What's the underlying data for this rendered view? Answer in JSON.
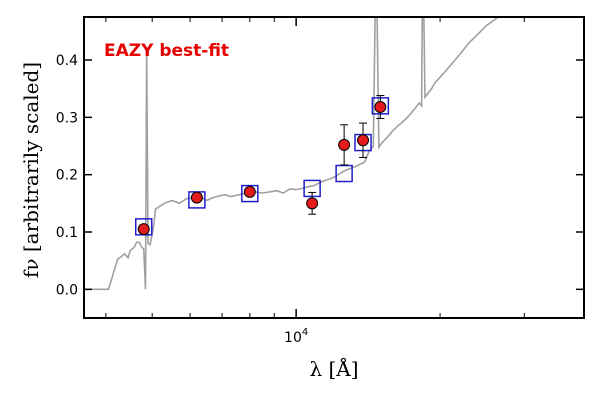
{
  "chart_data": {
    "type": "scatter",
    "title": "",
    "xlabel": "λ [Å]",
    "ylabel": "fν [arbitrarily scaled]",
    "xscale": "log",
    "xlim": [
      3600,
      40000
    ],
    "ylim": [
      -0.05,
      0.475
    ],
    "grid": false,
    "legend": "none",
    "x_tick_labels": [
      "10^4"
    ],
    "x_tick_values": [
      10000
    ],
    "y_tick_labels": [
      "0.0",
      "0.1",
      "0.2",
      "0.3",
      "0.4"
    ],
    "y_tick_values": [
      0.0,
      0.1,
      0.2,
      0.3,
      0.4
    ],
    "annotation": {
      "text": "EAZY best-fit",
      "color": "#e60000"
    },
    "colors": {
      "model_line": "#a0a0a0",
      "model_points": "#1f1fcf",
      "observed": "#e31a1c",
      "errorbar": "#000000"
    },
    "series": [
      {
        "kind": "line",
        "x": [
          3600,
          4050,
          4230,
          4380,
          4450,
          4500,
          4580,
          4640,
          4700,
          4750,
          4800,
          4840,
          4870,
          4900,
          4950,
          5010,
          5050,
          5080,
          5300,
          5500,
          5700,
          5900,
          6100,
          6300,
          6500,
          6700,
          6900,
          7100,
          7300,
          7600,
          7900,
          8200,
          8500,
          8800,
          9100,
          9400,
          9700,
          10000,
          10300,
          10600,
          10900,
          11200,
          11500,
          11800,
          12100,
          12400,
          12700,
          13000,
          13300,
          13600,
          13900,
          14200,
          14500,
          14700,
          14900,
          15100,
          15300,
          15500,
          15700,
          15900,
          16100,
          16300,
          16500,
          16700,
          16900,
          17100,
          17300,
          17500,
          17700,
          17900,
          18100,
          18300,
          18400,
          18600,
          18800,
          19000,
          19200,
          19500,
          20000,
          20500,
          21000,
          21500,
          22000,
          23000,
          24000,
          25000,
          26500,
          28000,
          29500
        ],
        "y": [
          0.0,
          0.0,
          0.052,
          0.062,
          0.055,
          0.068,
          0.073,
          0.082,
          0.082,
          0.074,
          0.07,
          0.0,
          0.42,
          0.08,
          0.078,
          0.1,
          0.12,
          0.14,
          0.15,
          0.155,
          0.15,
          0.158,
          0.16,
          0.162,
          0.155,
          0.16,
          0.163,
          0.165,
          0.162,
          0.165,
          0.168,
          0.17,
          0.168,
          0.17,
          0.172,
          0.168,
          0.175,
          0.174,
          0.176,
          0.179,
          0.181,
          0.186,
          0.19,
          0.193,
          0.197,
          0.203,
          0.208,
          0.211,
          0.214,
          0.218,
          0.222,
          0.24,
          0.25,
          0.6,
          0.248,
          0.255,
          0.26,
          0.265,
          0.27,
          0.276,
          0.28,
          0.285,
          0.288,
          0.292,
          0.296,
          0.3,
          0.305,
          0.31,
          0.315,
          0.32,
          0.325,
          0.32,
          0.6,
          0.335,
          0.34,
          0.345,
          0.35,
          0.36,
          0.37,
          0.38,
          0.39,
          0.4,
          0.41,
          0.43,
          0.445,
          0.46,
          0.475,
          0.48,
          0.48
        ]
      },
      {
        "name": "",
        "kind": "model_points",
        "x": [
          4800,
          6200,
          8000,
          10800,
          12600,
          13800,
          15000
        ],
        "y": [
          0.109,
          0.156,
          0.167,
          0.176,
          0.202,
          0.256,
          0.32
        ]
      },
      {
        "name": "",
        "kind": "observed",
        "x": [
          4800,
          6200,
          8000,
          10800,
          12600,
          13800,
          15000
        ],
        "y": [
          0.105,
          0.16,
          0.17,
          0.15,
          0.252,
          0.26,
          0.318
        ],
        "yerr": [
          0.007,
          0.007,
          0.007,
          0.019,
          0.035,
          0.03,
          0.02
        ]
      }
    ]
  }
}
